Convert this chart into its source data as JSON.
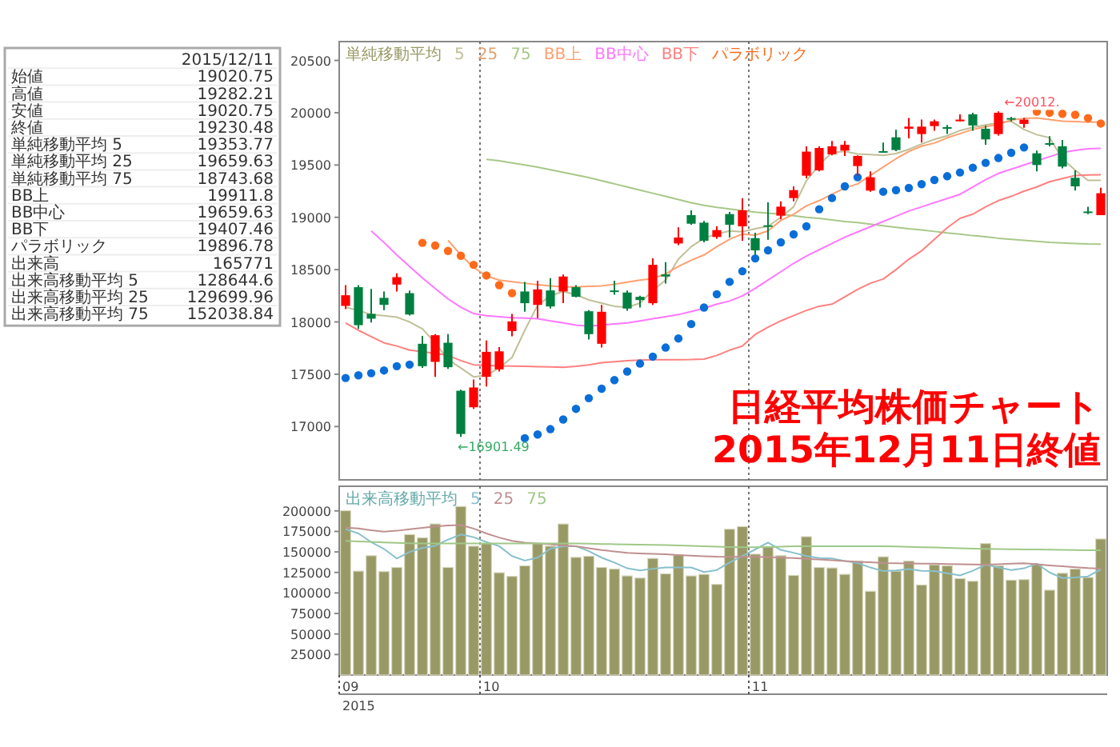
{
  "chart_data": [
    {
      "type": "candlestick",
      "title": "日経平均株価チャート",
      "subtitle": "2015年12月11日終値",
      "legend_title": "単純移動平均",
      "legend": "top left",
      "grid": "x",
      "tick_labels": "y",
      "categories": [
        "09",
        null,
        null,
        null,
        null,
        null,
        null,
        null,
        null,
        null,
        null,
        "10",
        null,
        null,
        null,
        null,
        null,
        null,
        null,
        null,
        null,
        null,
        null,
        null,
        null,
        null,
        null,
        null,
        null,
        null,
        null,
        null,
        "11",
        null,
        null,
        null,
        null,
        null,
        null,
        null,
        null,
        null,
        null,
        null,
        null,
        null,
        null,
        null,
        null,
        null,
        null,
        null,
        null,
        null,
        null,
        null,
        null,
        null,
        null,
        null
      ],
      "ylim": [
        16490,
        20680
      ],
      "yticks": [
        17000,
        17500,
        18000,
        18500,
        19000,
        19500,
        20000,
        20500
      ],
      "ohlc": [
        [
          18153,
          18352,
          18122,
          18255
        ],
        [
          18332,
          18352,
          17934,
          17969
        ],
        [
          18077,
          18316,
          17995,
          18031
        ],
        [
          18230,
          18291,
          18112,
          18163
        ],
        [
          18357,
          18464,
          18291,
          18428
        ],
        [
          18275,
          18301,
          18061,
          18071
        ],
        [
          17791,
          17867,
          17561,
          17577
        ],
        [
          17618,
          17883,
          17475,
          17873
        ],
        [
          17801,
          17883,
          17551,
          17567
        ],
        [
          17342,
          17352,
          16901.49,
          16929
        ],
        [
          17184,
          17449,
          17169,
          17373
        ],
        [
          17475,
          17822,
          17383,
          17714
        ],
        [
          17546,
          17760,
          17526,
          17719
        ],
        [
          17913,
          18077,
          17862,
          18005
        ],
        [
          18291,
          18383,
          18097,
          18179
        ],
        [
          18163,
          18393,
          18036,
          18311
        ],
        [
          18301,
          18418,
          18128,
          18148
        ],
        [
          18291,
          18454,
          18179,
          18434
        ],
        [
          18332,
          18352,
          18235,
          18240
        ],
        [
          18102,
          18112,
          17832,
          17883
        ],
        [
          17791,
          18163,
          17755,
          18097
        ],
        [
          18301,
          18393,
          18260,
          18291
        ],
        [
          18281,
          18301,
          18107,
          18128
        ],
        [
          18240,
          18250,
          18138,
          18209
        ],
        [
          18179,
          18607,
          18163,
          18546
        ],
        [
          18454,
          18571,
          18367,
          18434
        ],
        [
          18750,
          18904,
          18735,
          18807
        ],
        [
          19021,
          19067,
          18929,
          18939
        ],
        [
          18949,
          18965,
          18761,
          18776
        ],
        [
          18812,
          18914,
          18796,
          18878
        ],
        [
          19031,
          19051,
          18807,
          18929
        ],
        [
          18914,
          19184,
          18776,
          19067
        ],
        [
          18801,
          18852,
          18643,
          18684
        ],
        [
          18924,
          19143,
          18786,
          18914
        ],
        [
          19016,
          19153,
          18980,
          19102
        ],
        [
          19184,
          19296,
          19153,
          19260
        ],
        [
          19398,
          19679,
          19373,
          19628
        ],
        [
          19449,
          19679,
          19439,
          19663
        ],
        [
          19602,
          19730,
          19592,
          19679
        ],
        [
          19638,
          19730,
          19587,
          19694
        ],
        [
          19490,
          19592,
          19398,
          19587
        ],
        [
          19255,
          19439,
          19245,
          19383
        ],
        [
          19633,
          19714,
          19618,
          19623
        ],
        [
          19765,
          19837,
          19633,
          19643
        ],
        [
          19847,
          19949,
          19755,
          19867
        ],
        [
          19796,
          19934,
          19714,
          19867
        ],
        [
          19872,
          19934,
          19827,
          19918
        ],
        [
          19862,
          19883,
          19796,
          19852
        ],
        [
          19918,
          19985,
          19918,
          19934
        ],
        [
          19985,
          20000,
          19827,
          19878
        ],
        [
          19847,
          19878,
          19694,
          19745
        ],
        [
          19796,
          20012,
          19781,
          20000
        ],
        [
          19949,
          19959,
          19918,
          19934
        ],
        [
          19893,
          19949,
          19857,
          19934
        ],
        [
          19612,
          19638,
          19439,
          19500
        ],
        [
          19709,
          19776,
          19679,
          19699
        ],
        [
          19679,
          19740,
          19469,
          19485
        ],
        [
          19378,
          19449,
          19255,
          19296
        ],
        [
          19056,
          19102,
          19031,
          19046
        ],
        [
          19020.75,
          19282.21,
          19020.75,
          19230.48
        ]
      ],
      "colors": [
        "#ff0000",
        "#008040",
        "#008040",
        "#008040",
        "#ff0000",
        "#008040",
        "#008040",
        "#ff0000",
        "#008040",
        "#008040",
        "#ff0000",
        "#ff0000",
        "#ff0000",
        "#ff0000",
        "#008040",
        "#ff0000",
        "#008040",
        "#ff0000",
        "#008040",
        "#008040",
        "#ff0000",
        "#008040",
        "#008040",
        "#008040",
        "#ff0000",
        "#008040",
        "#ff0000",
        "#008040",
        "#008040",
        "#ff0000",
        "#008040",
        "#ff0000",
        "#008040",
        "#008040",
        "#ff0000",
        "#ff0000",
        "#ff0000",
        "#ff0000",
        "#ff0000",
        "#ff0000",
        "#ff0000",
        "#ff0000",
        "#008040",
        "#008040",
        "#ff0000",
        "#ff0000",
        "#ff0000",
        "#008040",
        "#ff0000",
        "#008040",
        "#008040",
        "#ff0000",
        "#008040",
        "#ff0000",
        "#008040",
        "#008040",
        "#008040",
        "#008040",
        "#008040",
        "#ff0000"
      ],
      "series": [
        {
          "name": "5",
          "type": "line",
          "color": "#c0c098",
          "values": [
            18140,
            18110,
            18070,
            18060,
            18046,
            18000,
            17934,
            17800,
            17640,
            17560,
            17475,
            17490,
            17560,
            17660,
            17920,
            18160,
            18250,
            18291,
            18260,
            18210,
            18180,
            18150,
            18140,
            18180,
            18300,
            18400,
            18600,
            18720,
            18800,
            18840,
            18870,
            18863,
            18890,
            18914,
            19000,
            19100,
            19350,
            19500,
            19620,
            19630,
            19605,
            19600,
            19592,
            19610,
            19650,
            19700,
            19745,
            19780,
            19830,
            19860,
            19883,
            19905,
            19918,
            19840,
            19790,
            19760,
            19560,
            19450,
            19354,
            19353.77
          ]
        },
        {
          "name": "25",
          "type": "line",
          "color": "#e0a070",
          "values": [
            null,
            null,
            null,
            null,
            null,
            null,
            null,
            null,
            null,
            null,
            null,
            null,
            null,
            null,
            null,
            null,
            null,
            null,
            null,
            null,
            null,
            null,
            null,
            null,
            null,
            null,
            null,
            null,
            null,
            null,
            null,
            null,
            null,
            null,
            null,
            null,
            null,
            null,
            null,
            null,
            null,
            null,
            null,
            null,
            null,
            null,
            null,
            null,
            null,
            null,
            null,
            null,
            null,
            null,
            null,
            null,
            null,
            null,
            null,
            null
          ]
        },
        {
          "name": "75",
          "type": "line",
          "color": "#a8c888",
          "values": [
            null,
            null,
            null,
            null,
            null,
            null,
            null,
            null,
            null,
            null,
            null,
            19555,
            19540,
            19520,
            19500,
            19480,
            19455,
            19430,
            19405,
            19380,
            19350,
            19320,
            19290,
            19260,
            19230,
            19200,
            19170,
            19140,
            19115,
            19095,
            19080,
            19065,
            19050,
            19040,
            19030,
            19015,
            19000,
            18990,
            18975,
            18960,
            18950,
            18935,
            18920,
            18905,
            18890,
            18880,
            18865,
            18850,
            18840,
            18825,
            18815,
            18800,
            18790,
            18780,
            18770,
            18760,
            18755,
            18750,
            18745,
            18743.68
          ]
        },
        {
          "name": "BB上",
          "type": "line",
          "color": "#ffa070",
          "values": [
            null,
            null,
            null,
            null,
            null,
            null,
            null,
            null,
            18780,
            18640,
            18520,
            18440,
            18400,
            18385,
            18370,
            18355,
            18345,
            18335,
            18335,
            18340,
            18345,
            18360,
            18380,
            18400,
            18415,
            18460,
            18530,
            18590,
            18640,
            18720,
            18790,
            18840,
            18830,
            18870,
            18970,
            19030,
            19110,
            19160,
            19220,
            19280,
            19320,
            19400,
            19480,
            19560,
            19630,
            19680,
            19710,
            19760,
            19800,
            19840,
            19865,
            19890,
            19930,
            19945,
            19950,
            19935,
            19920,
            19915,
            19910,
            19911.8
          ]
        },
        {
          "name": "BB中心",
          "type": "line",
          "color": "#ff77ff",
          "values": [
            null,
            null,
            18870,
            18760,
            18640,
            18530,
            18420,
            18320,
            18220,
            18140,
            18080,
            18060,
            18050,
            18040,
            18036,
            18030,
            18010,
            17990,
            17970,
            17960,
            17970,
            17980,
            17990,
            18010,
            18030,
            18050,
            18070,
            18100,
            18130,
            18170,
            18200,
            18250,
            18320,
            18400,
            18480,
            18560,
            18630,
            18690,
            18750,
            18810,
            18860,
            18910,
            18960,
            19010,
            19060,
            19100,
            19140,
            19180,
            19220,
            19290,
            19360,
            19420,
            19460,
            19500,
            19540,
            19580,
            19620,
            19640,
            19655,
            19659.63
          ]
        },
        {
          "name": "BB下",
          "type": "line",
          "color": "#ff8080",
          "values": [
            17990,
            17920,
            17860,
            17800,
            17770,
            17730,
            17715,
            17700,
            17680,
            17630,
            17590,
            17585,
            17580,
            17577,
            17575,
            17572,
            17570,
            17567,
            17575,
            17590,
            17610,
            17620,
            17630,
            17635,
            17638,
            17638,
            17638,
            17640,
            17645,
            17680,
            17730,
            17770,
            17880,
            17950,
            18010,
            18060,
            18110,
            18150,
            18170,
            18240,
            18310,
            18370,
            18410,
            18500,
            18600,
            18680,
            18790,
            18900,
            18990,
            19030,
            19100,
            19160,
            19200,
            19250,
            19290,
            19340,
            19370,
            19400,
            19405,
            19407.46
          ]
        },
        {
          "name": "パラボリック",
          "type": "scatter",
          "marker": "circle",
          "color": "#ff6a1a",
          "values": [
            17464,
            17490,
            17510,
            17536,
            17577,
            17592,
            18756,
            18730,
            18679,
            18633,
            18546,
            18444,
            18352,
            18275,
            16888,
            16924,
            16975,
            17067,
            17169,
            17271,
            17362,
            17444,
            17526,
            17602,
            17668,
            17755,
            17842,
            17980,
            18138,
            18265,
            18383,
            18485,
            18607,
            18684,
            18761,
            18837,
            18914,
            19077,
            19184,
            19296,
            19383,
            null,
            19245,
            19260,
            19281,
            19317,
            19357,
            19393,
            19429,
            19475,
            19521,
            19567,
            19617,
            19668,
            20010,
            20000,
            19990,
            19980,
            19949,
            19896.78
          ],
          "colors": [
            "#0a6ed8",
            "#0a6ed8",
            "#0a6ed8",
            "#0a6ed8",
            "#0a6ed8",
            "#0a6ed8",
            "#ff6a1a",
            "#ff6a1a",
            "#ff6a1a",
            "#ff6a1a",
            "#ff6a1a",
            "#ff6a1a",
            "#ff6a1a",
            "#ff6a1a",
            "#0a6ed8",
            "#0a6ed8",
            "#0a6ed8",
            "#0a6ed8",
            "#0a6ed8",
            "#0a6ed8",
            "#0a6ed8",
            "#0a6ed8",
            "#0a6ed8",
            "#0a6ed8",
            "#0a6ed8",
            "#0a6ed8",
            "#0a6ed8",
            "#0a6ed8",
            "#0a6ed8",
            "#0a6ed8",
            "#0a6ed8",
            "#0a6ed8",
            "#0a6ed8",
            "#0a6ed8",
            "#0a6ed8",
            "#0a6ed8",
            "#0a6ed8",
            "#0a6ed8",
            "#0a6ed8",
            "#0a6ed8",
            "#0a6ed8",
            null,
            "#0a6ed8",
            "#0a6ed8",
            "#0a6ed8",
            "#0a6ed8",
            "#0a6ed8",
            "#0a6ed8",
            "#0a6ed8",
            "#0a6ed8",
            "#0a6ed8",
            "#0a6ed8",
            "#0a6ed8",
            "#0a6ed8",
            "#ff6a1a",
            "#ff6a1a",
            "#ff6a1a",
            "#ff6a1a",
            "#ff6a1a",
            "#ff6a1a"
          ]
        }
      ],
      "annotations": [
        "←16901.49",
        "2015/12/11",
        "始値 19020.75",
        "高値 19282.21",
        "安値 19020.75",
        "終値 19230.48",
        "単純移動平均 5 19353.77",
        "単純移動平均 25 19659.63",
        "単純移動平均 75 18743.68",
        "BB上 19911.8",
        "BB中心 19659.63",
        "BB下 19407.46",
        "パラボリック 19896.78",
        "出来高 165771",
        "出来高移動平均 5 128644.6",
        "出来高移動平均 25 129699.96",
        "出来高移動平均 75 152038.84",
        {
          "text": "←20012.",
          "y": 20012
        }
      ]
    },
    {
      "type": "bar",
      "legend_title": "出来高移動平均",
      "legend": "top left",
      "grid": "x",
      "xlabel": "2015",
      "categories": [
        "09",
        null,
        null,
        null,
        null,
        null,
        null,
        null,
        null,
        null,
        null,
        "10",
        null,
        null,
        null,
        null,
        null,
        null,
        null,
        null,
        null,
        null,
        null,
        null,
        null,
        null,
        null,
        null,
        null,
        null,
        null,
        null,
        "11",
        null,
        null,
        null,
        null,
        null,
        null,
        null,
        null,
        null,
        null,
        null,
        null,
        null,
        null,
        null,
        null,
        null,
        null,
        null,
        null,
        null,
        null,
        null,
        null,
        null,
        null,
        null
      ],
      "ylim": [
        0,
        230000
      ],
      "yticks": [
        25000,
        50000,
        75000,
        100000,
        125000,
        150000,
        175000,
        200000
      ],
      "series": [
        {
          "color": "#999966",
          "values": [
            200260,
            126600,
            145400,
            126000,
            131100,
            171200,
            167300,
            184100,
            131100,
            205400,
            157000,
            160200,
            124700,
            120200,
            133100,
            160200,
            157000,
            184100,
            143400,
            144700,
            131100,
            129200,
            120800,
            118200,
            142100,
            123400,
            146000,
            120800,
            122700,
            110500,
            177700,
            180900,
            147300,
            156300,
            145400,
            121400,
            168600,
            131100,
            130500,
            122700,
            138900,
            102100,
            144100,
            126600,
            138900,
            109800,
            134400,
            133100,
            117600,
            114300,
            160200,
            133100,
            115600,
            116300,
            135000,
            103400,
            124000,
            129200,
            118900,
            165771
          ]
        },
        {
          "name": "5",
          "type": "line",
          "color": "#88c0cc",
          "values": [
            177700,
            172500,
            162000,
            153700,
            142000,
            150000,
            155000,
            157500,
            165000,
            171200,
            168000,
            162000,
            157000,
            145000,
            139500,
            143000,
            154000,
            157000,
            157000,
            151000,
            143000,
            137000,
            130000,
            127500,
            129500,
            131100,
            131100,
            131100,
            125500,
            128000,
            137000,
            145000,
            153000,
            161500,
            152500,
            149000,
            145000,
            142500,
            142100,
            139000,
            136500,
            131000,
            126600,
            127500,
            129200,
            127000,
            126600,
            124000,
            121400,
            127000,
            134400,
            131000,
            128000,
            130000,
            135700,
            125000,
            118200,
            119000,
            120200,
            128644.6
          ]
        },
        {
          "name": "25",
          "type": "line",
          "color": "#c09090",
          "values": [
            179600,
            178500,
            176500,
            174600,
            175800,
            177700,
            179200,
            181000,
            182300,
            182800,
            178500,
            172500,
            167500,
            163500,
            161200,
            160400,
            159300,
            158000,
            157000,
            154500,
            152300,
            150500,
            148900,
            148200,
            147600,
            147100,
            146300,
            145500,
            144800,
            144200,
            144100,
            144100,
            144100,
            143700,
            143100,
            142500,
            141600,
            140700,
            139800,
            138900,
            138000,
            137300,
            136500,
            136200,
            136000,
            135800,
            135700,
            135300,
            135000,
            134700,
            134400,
            135000,
            135800,
            136300,
            135000,
            133600,
            132500,
            131400,
            130300,
            129699.96
          ]
        },
        {
          "name": "75",
          "type": "line",
          "color": "#a0c888",
          "values": [
            163400,
            162800,
            162200,
            161600,
            161000,
            160500,
            160200,
            160200,
            160200,
            160200,
            160200,
            160200,
            160200,
            160200,
            160200,
            160200,
            160200,
            160200,
            160200,
            160000,
            159700,
            159400,
            159100,
            158800,
            158500,
            158300,
            157900,
            157500,
            157000,
            156500,
            156000,
            155700,
            155700,
            156000,
            156500,
            157000,
            157000,
            157000,
            157000,
            157000,
            157000,
            157000,
            157000,
            156600,
            156200,
            155800,
            155400,
            155000,
            154500,
            154100,
            153700,
            153500,
            153300,
            153100,
            152900,
            152700,
            152500,
            152300,
            152100,
            152038.84
          ]
        }
      ]
    }
  ]
}
